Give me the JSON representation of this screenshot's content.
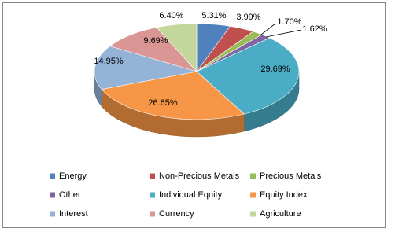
{
  "chart_data": {
    "type": "pie",
    "categories": [
      "Energy",
      "Non-Precious Metals",
      "Precious Metals",
      "Other",
      "Individual Equity",
      "Equity Index",
      "Interest",
      "Currency",
      "Agriculture"
    ],
    "values": [
      5.31,
      3.99,
      1.7,
      1.62,
      29.69,
      26.65,
      14.95,
      9.69,
      6.4
    ],
    "value_labels": [
      "5.31%",
      "3.99%",
      "1.70%",
      "1.62%",
      "29.69%",
      "26.65%",
      "14.95%",
      "9.69%",
      "6.40%"
    ],
    "colors": [
      "#4f81bd",
      "#c0504d",
      "#9bbb59",
      "#8064a2",
      "#4bacc6",
      "#f79646",
      "#95b3d7",
      "#d99694",
      "#c3d69b"
    ],
    "legend": "bottom"
  }
}
